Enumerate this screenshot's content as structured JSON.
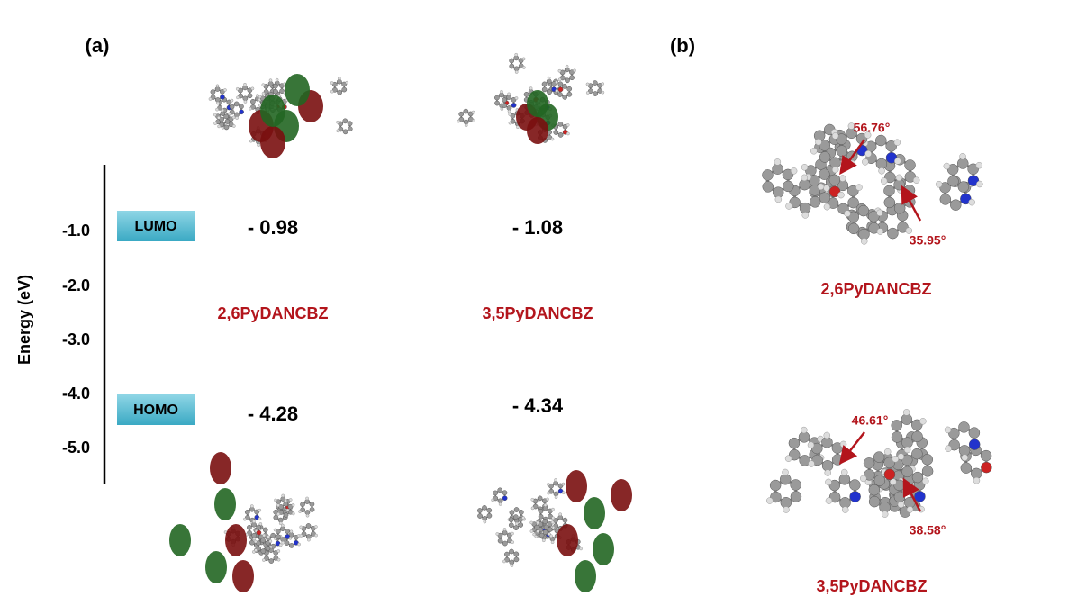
{
  "panel_a": {
    "label": "(a)",
    "axis_title": "Energy (eV)",
    "ticks": [
      "-1.0",
      "-2.0",
      "-3.0",
      "-4.0",
      "-5.0"
    ],
    "lumo_label": "LUMO",
    "homo_label": "HOMO",
    "molecules": [
      {
        "name": "2,6PyDANCBZ",
        "lumo": "- 0.98",
        "homo": "- 4.28"
      },
      {
        "name": "3,5PyDANCBZ",
        "lumo": "- 1.08",
        "homo": "- 4.34"
      }
    ]
  },
  "panel_b": {
    "label": "(b)",
    "structures": [
      {
        "name": "2,6PyDANCBZ",
        "angles": [
          "56.76°",
          "35.95°"
        ]
      },
      {
        "name": "3,5PyDANCBZ",
        "angles": [
          "46.61°",
          "38.58°"
        ]
      }
    ]
  }
}
